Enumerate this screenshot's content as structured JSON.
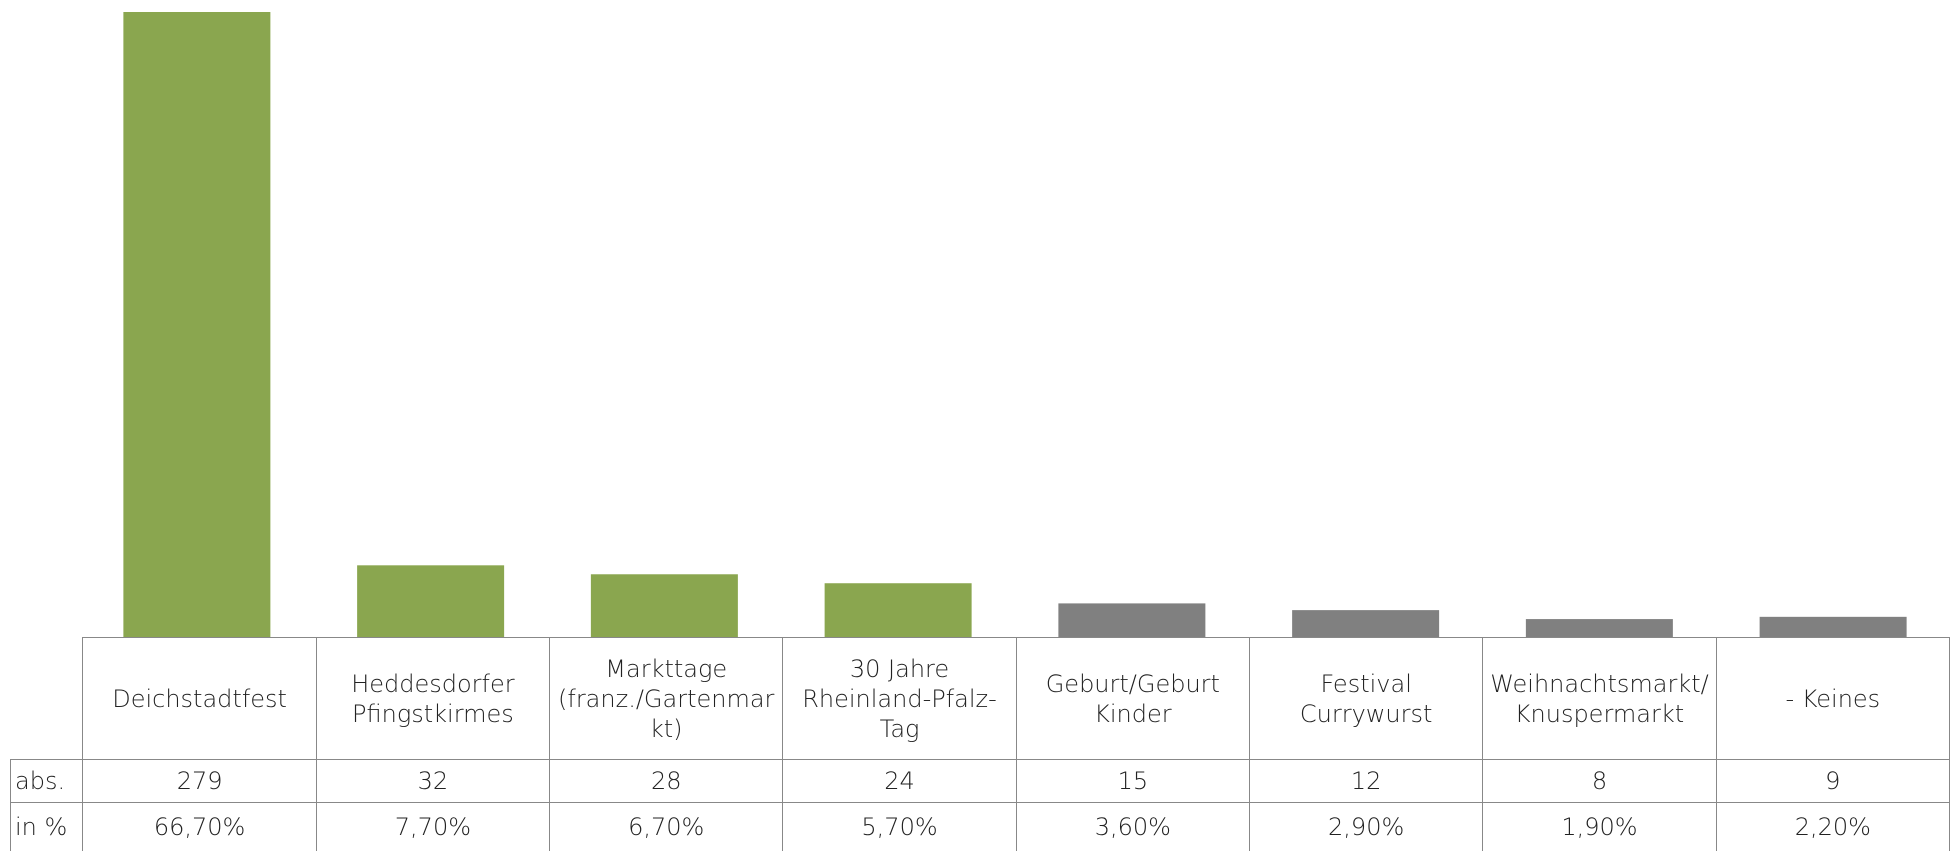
{
  "chart_data": {
    "type": "bar",
    "categories": [
      "Deichstadtfest",
      "Heddesdorfer Pfingstkirmes",
      "Markttage (franz./Gartenmarkt)",
      "30 Jahre Rheinland-Pfalz-Tag",
      "Geburt/Geburt Kinder",
      "Festival Currywurst",
      "Weihnachtsmarkt/Knuspermarkt",
      "- Keines"
    ],
    "colors": [
      "#8aa64f",
      "#8aa64f",
      "#8aa64f",
      "#8aa64f",
      "#808080",
      "#808080",
      "#808080",
      "#808080"
    ],
    "series": [
      {
        "name": "abs.",
        "values": [
          279,
          32,
          28,
          24,
          15,
          12,
          8,
          9
        ]
      },
      {
        "name": "in %",
        "values": [
          66.7,
          7.7,
          6.7,
          5.7,
          3.6,
          2.9,
          1.9,
          2.2
        ],
        "value_labels": [
          "66,70%",
          "7,70%",
          "6,70%",
          "5,70%",
          "3,60%",
          "2,90%",
          "1,90%",
          "2,20%"
        ]
      }
    ]
  }
}
